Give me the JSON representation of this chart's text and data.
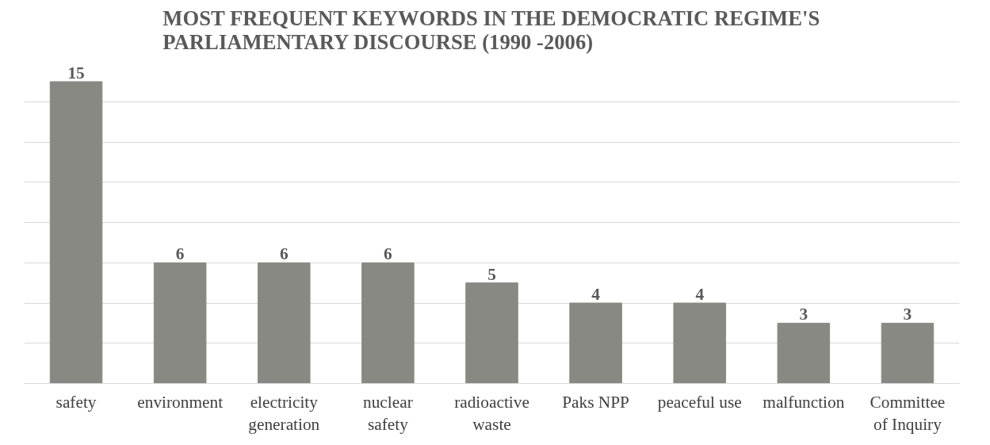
{
  "chart_data": {
    "type": "bar",
    "title": "MOST FREQUENT KEYWORDS IN THE DEMOCRATIC REGIME'S\nPARLIAMENTARY DISCOURSE  (1990  -2006)",
    "categories": [
      "safety",
      "environment",
      "electricity\ngeneration",
      "nuclear\nsafety",
      "radioactive\nwaste",
      "Paks NPP",
      "peaceful use",
      "malfunction",
      "Committee\nof Inquiry"
    ],
    "values": [
      15,
      6,
      6,
      6,
      5,
      4,
      4,
      3,
      3
    ],
    "color": "#898984",
    "yticks": [
      {
        "value": 0,
        "label": null
      },
      {
        "value": 2,
        "label": null
      },
      {
        "value": 4,
        "label": null
      },
      {
        "value": 6,
        "label": null
      },
      {
        "value": 8,
        "label": null
      },
      {
        "value": 10,
        "label": null
      },
      {
        "value": 12,
        "label": null
      },
      {
        "value": 14,
        "label": null
      }
    ],
    "grid": "y",
    "data_labels": true,
    "tick_labels": "x"
  }
}
